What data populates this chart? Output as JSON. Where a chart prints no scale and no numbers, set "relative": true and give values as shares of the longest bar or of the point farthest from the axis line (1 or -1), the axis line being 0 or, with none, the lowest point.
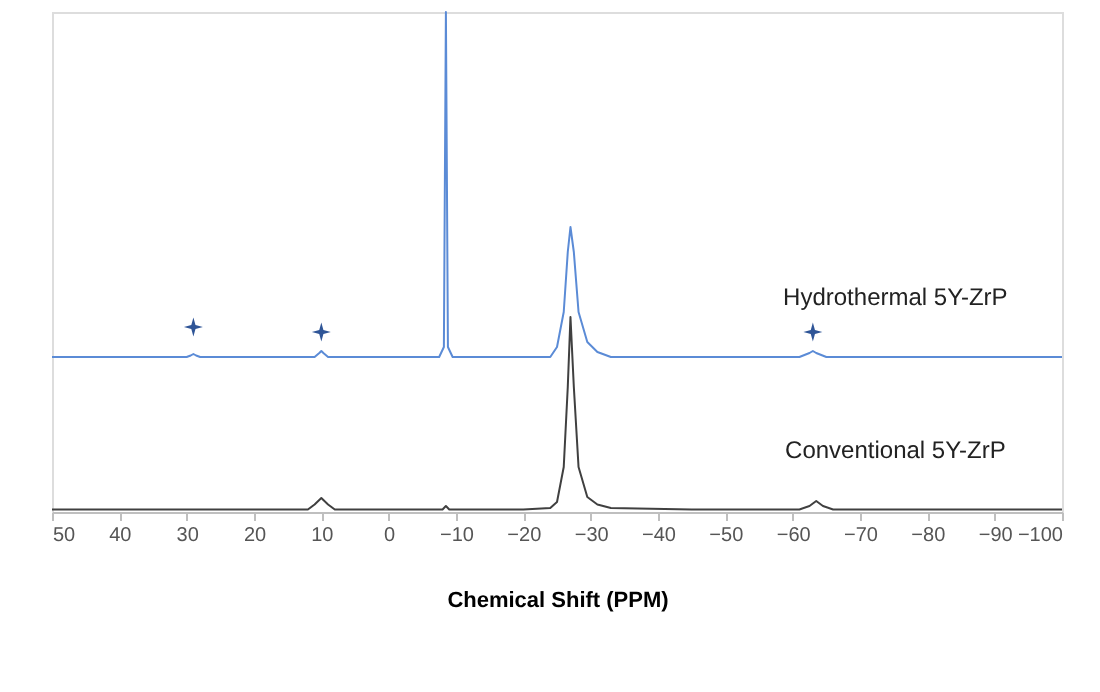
{
  "chart_data": {
    "type": "line",
    "relative": true,
    "xlabel": "Chemical Shift (PPM)",
    "xlim": [
      50,
      -100
    ],
    "xticks": [
      50,
      40,
      30,
      20,
      10,
      0,
      -10,
      -20,
      -30,
      -40,
      -50,
      -60,
      -70,
      -80,
      -90,
      -100
    ],
    "grid": false,
    "series": [
      {
        "name": "Hydrothermal 5Y-ZrP",
        "color": "#5b8bd6",
        "x": [
          50,
          40,
          30,
          29.4,
          29,
          28.6,
          28,
          20,
          11,
          10.3,
          10,
          9.7,
          9,
          0,
          -7.5,
          -8.2,
          -8.5,
          -8.8,
          -9.5,
          -15,
          -24,
          -25,
          -26,
          -26.6,
          -27,
          -27.5,
          -28.2,
          -29.5,
          -31,
          -33,
          -45,
          -61,
          -62.5,
          -63,
          -63.5,
          -65,
          -80,
          -100
        ],
        "values": [
          0.31,
          0.31,
          0.31,
          0.313,
          0.316,
          0.313,
          0.31,
          0.31,
          0.31,
          0.318,
          0.322,
          0.318,
          0.31,
          0.31,
          0.31,
          0.33,
          1.0,
          0.33,
          0.31,
          0.31,
          0.31,
          0.33,
          0.4,
          0.52,
          0.57,
          0.52,
          0.4,
          0.34,
          0.32,
          0.31,
          0.31,
          0.31,
          0.318,
          0.322,
          0.318,
          0.31,
          0.31,
          0.31
        ]
      },
      {
        "name": "Conventional 5Y-ZrP",
        "color": "#404040",
        "x": [
          50,
          30,
          12,
          11,
          10,
          9,
          8,
          0,
          -8,
          -8.5,
          -9,
          -20,
          -24,
          -25,
          -26,
          -26.6,
          -27,
          -27.5,
          -28.2,
          -29.5,
          -31,
          -33,
          -45,
          -61,
          -62.5,
          -63.5,
          -64.5,
          -66,
          -80,
          -100
        ],
        "values": [
          0.005,
          0.005,
          0.005,
          0.015,
          0.028,
          0.015,
          0.005,
          0.005,
          0.005,
          0.012,
          0.005,
          0.005,
          0.008,
          0.02,
          0.09,
          0.25,
          0.39,
          0.25,
          0.09,
          0.03,
          0.015,
          0.008,
          0.005,
          0.005,
          0.012,
          0.022,
          0.012,
          0.005,
          0.005,
          0.005
        ]
      },
      {
        "type": "scatter",
        "marker": "star",
        "color": "#2f5597",
        "x": [
          29,
          10,
          -63
        ],
        "values": [
          0.37,
          0.36,
          0.36
        ]
      }
    ]
  }
}
